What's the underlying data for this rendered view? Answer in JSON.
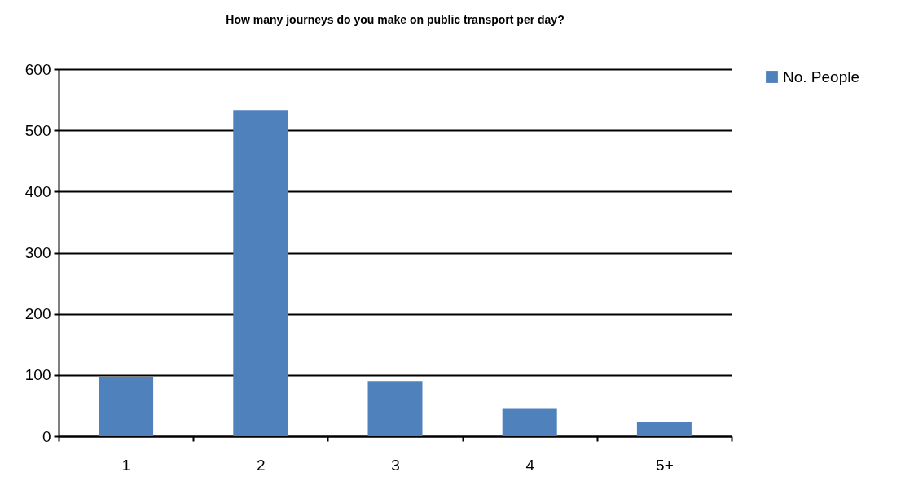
{
  "chart_data": {
    "type": "bar",
    "title": "How many journeys do you make on public transport per day?",
    "categories": [
      "1",
      "2",
      "3",
      "4",
      "5+"
    ],
    "series": [
      {
        "name": "No. People",
        "color": "#4f81bd",
        "values": [
          97,
          533,
          90,
          46,
          24
        ]
      }
    ],
    "ylim": [
      0,
      600
    ],
    "yticks": [
      0,
      100,
      200,
      300,
      400,
      500,
      600
    ],
    "grid": "y",
    "legend": "right"
  }
}
